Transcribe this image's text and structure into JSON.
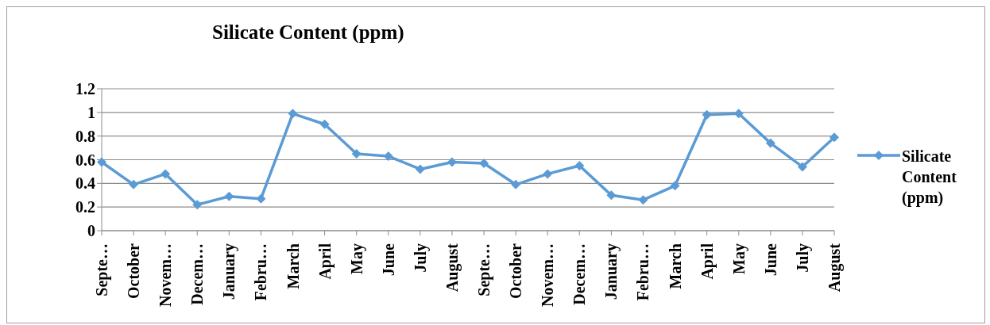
{
  "chart_data": {
    "type": "line",
    "title": "Silicate Content (ppm)",
    "categories": [
      "Septe…",
      "October",
      "Novem…",
      "Decem…",
      "January",
      "Febru…",
      "March",
      "April",
      "May",
      "June",
      "July",
      "August",
      "Septe…",
      "October",
      "Novem…",
      "Decem…",
      "January",
      "Febru…",
      "March",
      "April",
      "May",
      "June",
      "July",
      "August"
    ],
    "series": [
      {
        "name": "Silicate Content (ppm)",
        "color": "#5b9bd5",
        "values": [
          0.58,
          0.39,
          0.48,
          0.22,
          0.29,
          0.27,
          0.99,
          0.9,
          0.65,
          0.63,
          0.52,
          0.58,
          0.57,
          0.39,
          0.48,
          0.55,
          0.3,
          0.26,
          0.38,
          0.98,
          0.99,
          0.74,
          0.54,
          0.79
        ]
      }
    ],
    "ylim": [
      0,
      1.2
    ],
    "yticks": [
      0,
      0.2,
      0.4,
      0.6,
      0.8,
      1,
      1.2
    ],
    "grid": "y",
    "legend": "right",
    "marker": "diamond",
    "line_style": "solid"
  }
}
